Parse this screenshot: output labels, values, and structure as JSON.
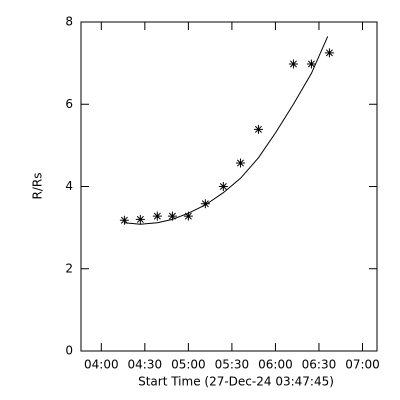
{
  "chart_data": {
    "type": "scatter",
    "x_label": "Start Time (27-Dec-24 03:47:45)",
    "y_label": "R/Rs",
    "xlim": [
      226,
      430
    ],
    "ylim": [
      0,
      8
    ],
    "xticks": [
      {
        "value": 240,
        "label": "04:00"
      },
      {
        "value": 270,
        "label": "04:30"
      },
      {
        "value": 300,
        "label": "05:00"
      },
      {
        "value": 330,
        "label": "05:30"
      },
      {
        "value": 360,
        "label": "06:00"
      },
      {
        "value": 390,
        "label": "06:30"
      },
      {
        "value": 420,
        "label": "07:00"
      }
    ],
    "yticks": [
      0,
      2,
      4,
      6,
      8
    ],
    "series": [
      {
        "style": "markers",
        "color": "#000000",
        "x": [
          255.9,
          266.9,
          278.6,
          289,
          300,
          311.7,
          324.1,
          335.9,
          348.3,
          372.4,
          384.8,
          397.2
        ],
        "values": [
          3.18,
          3.2,
          3.28,
          3.28,
          3.28,
          3.58,
          4.0,
          4.57,
          5.39,
          6.98,
          6.98,
          7.25
        ]
      },
      {
        "style": "line",
        "color": "#000000",
        "x": [
          255.9,
          266.9,
          278.6,
          289,
          300,
          311.7,
          324.1,
          335.9,
          348.3,
          360,
          372.4,
          384.8,
          396
        ],
        "values": [
          3.12,
          3.08,
          3.12,
          3.2,
          3.35,
          3.55,
          3.85,
          4.2,
          4.7,
          5.3,
          6.0,
          6.75,
          7.65
        ]
      }
    ]
  }
}
